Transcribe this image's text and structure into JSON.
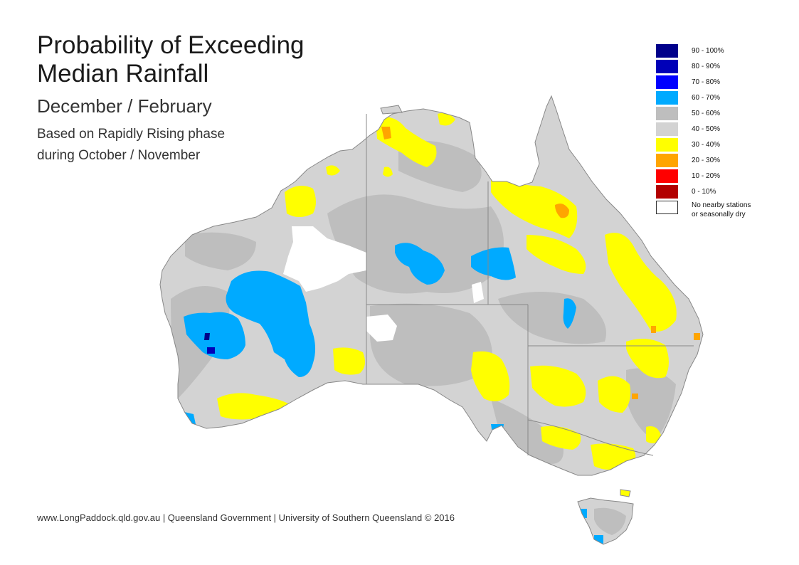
{
  "title_line1": "Probability of Exceeding",
  "title_line2": "Median Rainfall",
  "subtitle": "December / February",
  "description_line1": "Based on Rapidly Rising phase",
  "description_line2": "during October / November",
  "footer": "www.LongPaddock.qld.gov.au | Queensland Government | University of Southern Queensland © 2016",
  "legend": [
    {
      "label": "90 - 100%",
      "color": "#00008b"
    },
    {
      "label": "80 - 90%",
      "color": "#0000b8"
    },
    {
      "label": "70 - 80%",
      "color": "#0000ff"
    },
    {
      "label": "60 - 70%",
      "color": "#00aaff"
    },
    {
      "label": "50 - 60%",
      "color": "#bebebe"
    },
    {
      "label": "40 - 50%",
      "color": "#d3d3d3"
    },
    {
      "label": "30 - 40%",
      "color": "#ffff00"
    },
    {
      "label": "20 - 30%",
      "color": "#ffa500"
    },
    {
      "label": "10 - 20%",
      "color": "#ff0000"
    },
    {
      "label": "0 - 10%",
      "color": "#b30000"
    }
  ],
  "legend_nodata_line1": "No nearby stations",
  "legend_nodata_line2": "or seasonally dry",
  "colors": {
    "border": "#888888",
    "background": "#ffffff"
  }
}
